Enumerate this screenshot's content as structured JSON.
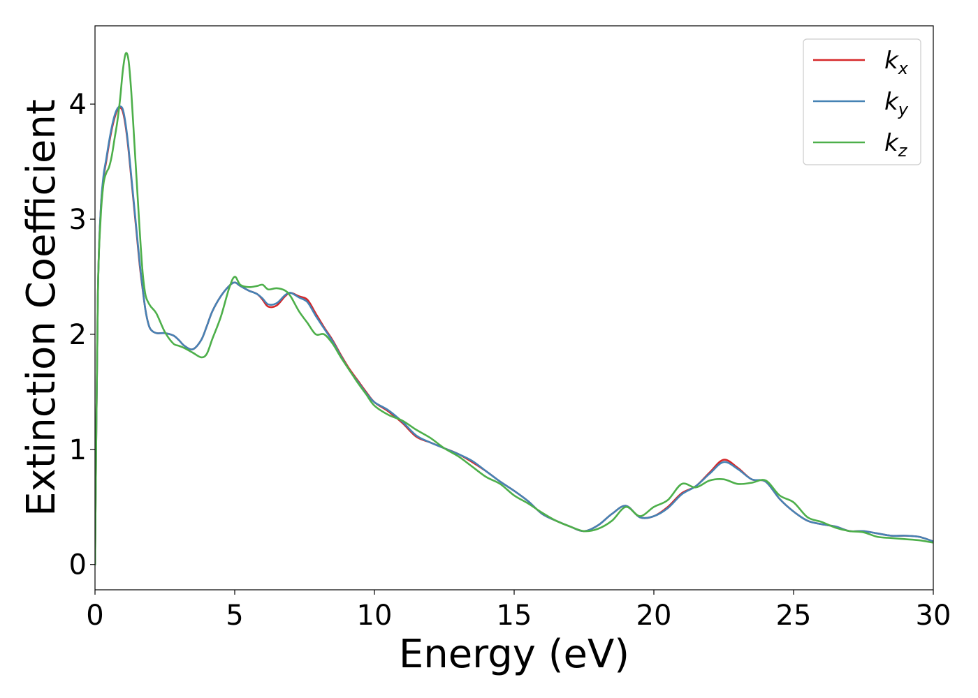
{
  "chart_data": {
    "type": "line",
    "xlabel": "Energy (eV)",
    "ylabel": "Extinction Coefficient",
    "xlim": [
      0,
      30
    ],
    "ylim": [
      -0.22,
      4.68
    ],
    "xticks": [
      0,
      5,
      10,
      15,
      20,
      25,
      30
    ],
    "yticks": [
      0,
      1,
      2,
      3,
      4
    ],
    "grid": false,
    "legend_position": "top-right",
    "series": [
      {
        "name": "k_x",
        "legend_base": "k",
        "legend_sub": "x",
        "color": "#d62728",
        "x": [
          0,
          0.1,
          0.2,
          0.3,
          0.4,
          0.5,
          0.6,
          0.7,
          0.8,
          0.9,
          1.0,
          1.1,
          1.2,
          1.3,
          1.4,
          1.5,
          1.6,
          1.7,
          1.8,
          1.9,
          2.0,
          2.2,
          2.5,
          2.8,
          3.0,
          3.2,
          3.5,
          3.8,
          4.0,
          4.2,
          4.5,
          4.8,
          5.0,
          5.2,
          5.5,
          5.8,
          6.0,
          6.2,
          6.5,
          6.8,
          7.0,
          7.3,
          7.6,
          7.9,
          8.2,
          8.5,
          8.8,
          9.1,
          9.4,
          9.7,
          10.0,
          10.5,
          11.0,
          11.5,
          12.0,
          12.5,
          13.0,
          13.5,
          14.0,
          14.5,
          15.0,
          15.5,
          16.0,
          16.5,
          17.0,
          17.5,
          18.0,
          18.5,
          19.0,
          19.5,
          20.0,
          20.5,
          21.0,
          21.5,
          22.0,
          22.5,
          23.0,
          23.5,
          24.0,
          24.5,
          25.0,
          25.5,
          26.0,
          26.5,
          27.0,
          27.5,
          28.0,
          28.5,
          29.0,
          29.5,
          30.0
        ],
        "y": [
          0,
          2.3,
          3.05,
          3.35,
          3.5,
          3.65,
          3.78,
          3.88,
          3.95,
          3.97,
          3.93,
          3.8,
          3.6,
          3.35,
          3.1,
          2.85,
          2.6,
          2.4,
          2.22,
          2.1,
          2.04,
          2.01,
          2.01,
          1.99,
          1.95,
          1.9,
          1.87,
          1.95,
          2.07,
          2.2,
          2.33,
          2.42,
          2.45,
          2.42,
          2.38,
          2.35,
          2.3,
          2.24,
          2.25,
          2.33,
          2.36,
          2.33,
          2.3,
          2.18,
          2.06,
          1.95,
          1.82,
          1.7,
          1.6,
          1.5,
          1.41,
          1.33,
          1.23,
          1.11,
          1.06,
          1.01,
          0.96,
          0.89,
          0.81,
          0.72,
          0.64,
          0.55,
          0.44,
          0.38,
          0.33,
          0.29,
          0.34,
          0.44,
          0.51,
          0.41,
          0.42,
          0.5,
          0.62,
          0.68,
          0.8,
          0.91,
          0.84,
          0.74,
          0.72,
          0.57,
          0.46,
          0.38,
          0.35,
          0.33,
          0.29,
          0.29,
          0.27,
          0.25,
          0.25,
          0.24,
          0.2
        ]
      },
      {
        "name": "k_y",
        "legend_base": "k",
        "legend_sub": "y",
        "color": "#4682b4",
        "x": [
          0,
          0.1,
          0.2,
          0.3,
          0.4,
          0.5,
          0.6,
          0.7,
          0.8,
          0.9,
          1.0,
          1.1,
          1.2,
          1.3,
          1.4,
          1.5,
          1.6,
          1.7,
          1.8,
          1.9,
          2.0,
          2.2,
          2.5,
          2.8,
          3.0,
          3.2,
          3.5,
          3.8,
          4.0,
          4.2,
          4.5,
          4.8,
          5.0,
          5.2,
          5.5,
          5.8,
          6.0,
          6.2,
          6.5,
          6.8,
          7.0,
          7.3,
          7.6,
          7.9,
          8.2,
          8.5,
          8.8,
          9.1,
          9.4,
          9.7,
          10.0,
          10.5,
          11.0,
          11.5,
          12.0,
          12.5,
          13.0,
          13.5,
          14.0,
          14.5,
          15.0,
          15.5,
          16.0,
          16.5,
          17.0,
          17.5,
          18.0,
          18.5,
          19.0,
          19.5,
          20.0,
          20.5,
          21.0,
          21.5,
          22.0,
          22.5,
          23.0,
          23.5,
          24.0,
          24.5,
          25.0,
          25.5,
          26.0,
          26.5,
          27.0,
          27.5,
          28.0,
          28.5,
          29.0,
          29.5,
          30.0
        ],
        "y": [
          0,
          2.3,
          3.06,
          3.37,
          3.52,
          3.67,
          3.8,
          3.9,
          3.96,
          3.98,
          3.95,
          3.82,
          3.62,
          3.37,
          3.12,
          2.87,
          2.62,
          2.41,
          2.22,
          2.1,
          2.04,
          2.01,
          2.01,
          1.99,
          1.95,
          1.9,
          1.87,
          1.95,
          2.07,
          2.2,
          2.33,
          2.42,
          2.45,
          2.42,
          2.38,
          2.35,
          2.31,
          2.26,
          2.27,
          2.34,
          2.36,
          2.32,
          2.28,
          2.16,
          2.05,
          1.94,
          1.81,
          1.69,
          1.59,
          1.49,
          1.41,
          1.34,
          1.24,
          1.12,
          1.06,
          1.01,
          0.96,
          0.9,
          0.81,
          0.72,
          0.64,
          0.55,
          0.44,
          0.38,
          0.33,
          0.29,
          0.34,
          0.44,
          0.51,
          0.41,
          0.42,
          0.49,
          0.61,
          0.68,
          0.79,
          0.89,
          0.83,
          0.74,
          0.72,
          0.57,
          0.46,
          0.38,
          0.35,
          0.33,
          0.29,
          0.29,
          0.27,
          0.25,
          0.25,
          0.24,
          0.2
        ]
      },
      {
        "name": "k_z",
        "legend_base": "k",
        "legend_sub": "z",
        "color": "#4daf4a",
        "x": [
          0,
          0.1,
          0.2,
          0.3,
          0.4,
          0.5,
          0.6,
          0.7,
          0.8,
          0.9,
          1.0,
          1.1,
          1.2,
          1.3,
          1.4,
          1.5,
          1.6,
          1.7,
          1.8,
          1.9,
          2.0,
          2.2,
          2.5,
          2.8,
          3.0,
          3.2,
          3.5,
          3.8,
          4.0,
          4.2,
          4.5,
          4.8,
          5.0,
          5.2,
          5.5,
          5.8,
          6.0,
          6.2,
          6.5,
          6.8,
          7.0,
          7.3,
          7.6,
          7.9,
          8.2,
          8.5,
          8.8,
          9.1,
          9.4,
          9.7,
          10.0,
          10.5,
          11.0,
          11.5,
          12.0,
          12.5,
          13.0,
          13.5,
          14.0,
          14.5,
          15.0,
          15.5,
          16.0,
          16.5,
          17.0,
          17.5,
          18.0,
          18.5,
          19.0,
          19.5,
          20.0,
          20.5,
          21.0,
          21.5,
          22.0,
          22.5,
          23.0,
          23.5,
          24.0,
          24.5,
          25.0,
          25.5,
          26.0,
          26.5,
          27.0,
          27.5,
          28.0,
          28.5,
          29.0,
          29.5,
          30.0
        ],
        "y": [
          0,
          2.3,
          3.0,
          3.3,
          3.4,
          3.45,
          3.55,
          3.7,
          3.85,
          4.05,
          4.3,
          4.44,
          4.38,
          4.1,
          3.7,
          3.3,
          2.9,
          2.55,
          2.35,
          2.28,
          2.24,
          2.18,
          2.02,
          1.92,
          1.9,
          1.88,
          1.84,
          1.8,
          1.83,
          1.96,
          2.15,
          2.4,
          2.5,
          2.43,
          2.41,
          2.42,
          2.43,
          2.39,
          2.4,
          2.38,
          2.33,
          2.2,
          2.1,
          2.0,
          2.0,
          1.92,
          1.8,
          1.69,
          1.58,
          1.48,
          1.38,
          1.3,
          1.25,
          1.17,
          1.1,
          1.01,
          0.94,
          0.85,
          0.76,
          0.7,
          0.6,
          0.53,
          0.45,
          0.38,
          0.33,
          0.29,
          0.31,
          0.38,
          0.5,
          0.42,
          0.5,
          0.56,
          0.7,
          0.67,
          0.73,
          0.74,
          0.7,
          0.71,
          0.73,
          0.6,
          0.54,
          0.41,
          0.37,
          0.32,
          0.29,
          0.28,
          0.24,
          0.23,
          0.22,
          0.21,
          0.19
        ]
      }
    ]
  }
}
